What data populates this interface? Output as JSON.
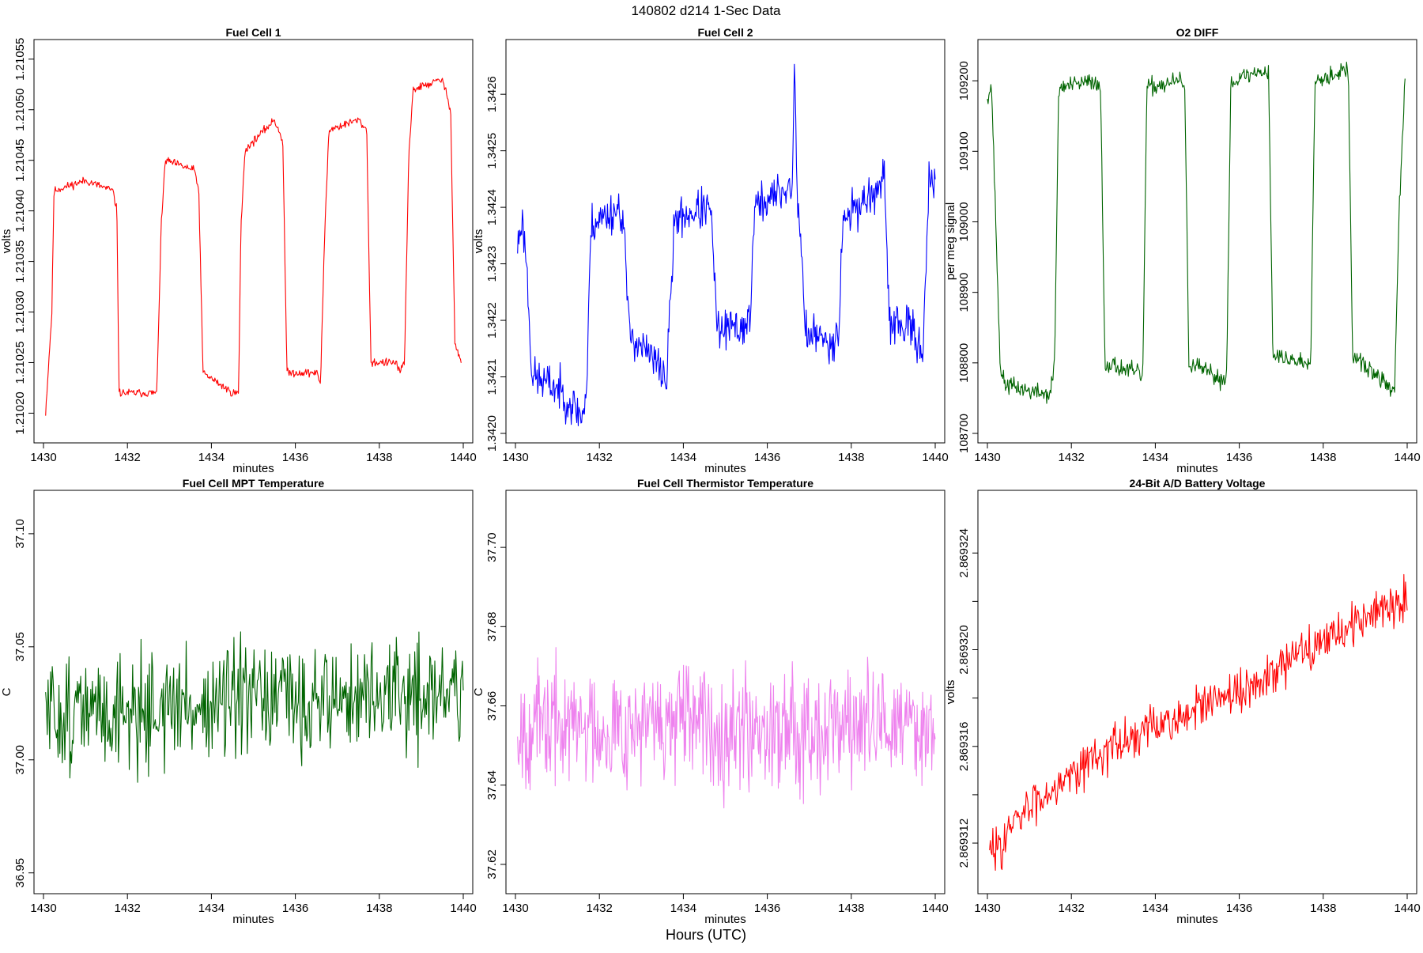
{
  "figure": {
    "title": "140802   d214   1-Sec Data",
    "footer_label": "Hours (UTC)"
  },
  "chart_data": [
    {
      "type": "line",
      "title": "Fuel Cell 1",
      "xlabel": "minutes",
      "ylabel": "volts",
      "color": "#ff0000",
      "xlim": [
        1430,
        1440
      ],
      "ylim": [
        1.21018,
        1.21056
      ],
      "xticks": [
        1430,
        1432,
        1434,
        1436,
        1438,
        1440
      ],
      "xtick_labels": [
        "1430",
        "1432",
        "1434",
        "1436",
        "1438",
        "1440"
      ],
      "yticks": [
        1.2102,
        1.21025,
        1.2103,
        1.21035,
        1.2104,
        1.21045,
        1.2105,
        1.21055
      ],
      "ytick_labels": [
        "1.21020",
        "1.21025",
        "1.21030",
        "1.21035",
        "1.21040",
        "1.21045",
        "1.21050",
        "1.21055"
      ],
      "series": [
        {
          "name": "Fuel Cell 1",
          "x": [
            1430.05,
            1430.2,
            1430.25,
            1431.0,
            1431.65,
            1431.75,
            1431.8,
            1432.5,
            1432.7,
            1432.8,
            1432.9,
            1433.6,
            1433.7,
            1433.8,
            1434.5,
            1434.65,
            1434.7,
            1434.8,
            1435.5,
            1435.7,
            1435.8,
            1436.5,
            1436.6,
            1436.7,
            1436.8,
            1437.5,
            1437.7,
            1437.8,
            1438.4,
            1438.5,
            1438.6,
            1438.7,
            1438.8,
            1439.5,
            1439.7,
            1439.8,
            1439.95
          ],
          "y": [
            1.2102,
            1.2103,
            1.21042,
            1.21043,
            1.21042,
            1.2104,
            1.21022,
            1.21022,
            1.21022,
            1.21038,
            1.21045,
            1.21044,
            1.21042,
            1.21024,
            1.21022,
            1.21022,
            1.21038,
            1.21046,
            1.21049,
            1.21047,
            1.21024,
            1.21024,
            1.21023,
            1.21038,
            1.21048,
            1.21049,
            1.21048,
            1.21025,
            1.21025,
            1.21024,
            1.21025,
            1.21045,
            1.21052,
            1.21053,
            1.2105,
            1.21027,
            1.21025
          ],
          "noise": 3.5e-06,
          "points": 600,
          "seed": 11
        }
      ]
    },
    {
      "type": "line",
      "title": "Fuel Cell 2",
      "xlabel": "minutes",
      "ylabel": "volts",
      "color": "#0000ff",
      "xlim": [
        1430,
        1440
      ],
      "ylim": [
        1.342,
        1.34268
      ],
      "xticks": [
        1430,
        1432,
        1434,
        1436,
        1438,
        1440
      ],
      "xtick_labels": [
        "1430",
        "1432",
        "1434",
        "1436",
        "1438",
        "1440"
      ],
      "yticks": [
        1.342,
        1.3421,
        1.3422,
        1.3423,
        1.3424,
        1.3425,
        1.3426
      ],
      "ytick_labels": [
        "1.3420",
        "1.3421",
        "1.3422",
        "1.3423",
        "1.3424",
        "1.3425",
        "1.3426"
      ],
      "series": [
        {
          "name": "Fuel Cell 2",
          "x": [
            1430.05,
            1430.15,
            1430.25,
            1430.4,
            1431.0,
            1431.6,
            1431.7,
            1431.8,
            1432.5,
            1432.6,
            1432.7,
            1433.5,
            1433.6,
            1433.7,
            1433.8,
            1434.6,
            1434.7,
            1434.8,
            1435.5,
            1435.6,
            1435.7,
            1436.4,
            1436.6,
            1436.65,
            1436.7,
            1436.8,
            1436.9,
            1437.5,
            1437.7,
            1437.8,
            1438.6,
            1438.8,
            1438.9,
            1439.5,
            1439.7,
            1439.85,
            1440.0
          ],
          "y": [
            1.34233,
            1.34238,
            1.34232,
            1.3421,
            1.34208,
            1.34203,
            1.34208,
            1.34237,
            1.3424,
            1.34235,
            1.34218,
            1.34211,
            1.34209,
            1.34225,
            1.34238,
            1.3424,
            1.34235,
            1.34218,
            1.34219,
            1.34222,
            1.3424,
            1.34243,
            1.34244,
            1.34267,
            1.34243,
            1.34235,
            1.34218,
            1.34216,
            1.34218,
            1.34238,
            1.34243,
            1.34244,
            1.3422,
            1.34218,
            1.34214,
            1.34245,
            1.34243
          ],
          "noise": 3.2e-05,
          "points": 600,
          "seed": 23
        }
      ]
    },
    {
      "type": "line",
      "title": "O2 DIFF",
      "xlabel": "minutes",
      "ylabel": "per meg signal",
      "color": "#006400",
      "xlim": [
        1430,
        1440
      ],
      "ylim": [
        108700,
        109245
      ],
      "xticks": [
        1430,
        1432,
        1434,
        1436,
        1438,
        1440
      ],
      "xtick_labels": [
        "1430",
        "1432",
        "1434",
        "1436",
        "1438",
        "1440"
      ],
      "yticks": [
        108700,
        108800,
        108900,
        109000,
        109100,
        109200
      ],
      "ytick_labels": [
        "108700",
        "108800",
        "108900",
        "109000",
        "109100",
        "109200"
      ],
      "series": [
        {
          "name": "O2 DIFF",
          "x": [
            1430.0,
            1430.1,
            1430.2,
            1430.3,
            1430.4,
            1431.0,
            1431.5,
            1431.6,
            1431.7,
            1432.6,
            1432.7,
            1432.8,
            1433.6,
            1433.7,
            1433.8,
            1434.6,
            1434.7,
            1434.8,
            1435.6,
            1435.7,
            1435.8,
            1436.6,
            1436.7,
            1436.8,
            1437.6,
            1437.7,
            1437.8,
            1438.5,
            1438.6,
            1438.7,
            1439.5,
            1439.7,
            1439.8,
            1439.95
          ],
          "y": [
            109180,
            109190,
            109000,
            108800,
            108770,
            108760,
            108755,
            108800,
            109190,
            109200,
            109180,
            108800,
            108785,
            108780,
            109190,
            109200,
            109195,
            108800,
            108775,
            108785,
            109200,
            109215,
            109210,
            108810,
            108800,
            108800,
            109200,
            109215,
            109210,
            108810,
            108770,
            108760,
            109000,
            109200
          ],
          "noise": 11,
          "points": 600,
          "seed": 37
        }
      ]
    },
    {
      "type": "line",
      "title": "Fuel Cell MPT Temperature",
      "xlabel": "minutes",
      "ylabel": "C",
      "color": "#006400",
      "xlim": [
        1430,
        1440
      ],
      "ylim": [
        36.945,
        37.115
      ],
      "xticks": [
        1430,
        1432,
        1434,
        1436,
        1438,
        1440
      ],
      "xtick_labels": [
        "1430",
        "1432",
        "1434",
        "1436",
        "1438",
        "1440"
      ],
      "yticks": [
        36.95,
        37.0,
        37.05,
        37.1
      ],
      "ytick_labels": [
        "36.95",
        "37.00",
        "37.05",
        "37.10"
      ],
      "series": [
        {
          "name": "Fuel Cell MPT Temperature",
          "x": [
            1430.05,
            1440.0
          ],
          "y": [
            37.02,
            37.03
          ],
          "noise": 0.022,
          "points": 500,
          "seed": 51
        }
      ]
    },
    {
      "type": "line",
      "title": "Fuel Cell Thermistor Temperature",
      "xlabel": "minutes",
      "ylabel": "C",
      "color": "#ee82ee",
      "xlim": [
        1430,
        1440
      ],
      "ylim": [
        37.615,
        37.712
      ],
      "xticks": [
        1430,
        1432,
        1434,
        1436,
        1438,
        1440
      ],
      "xtick_labels": [
        "1430",
        "1432",
        "1434",
        "1436",
        "1438",
        "1440"
      ],
      "yticks": [
        37.62,
        37.64,
        37.66,
        37.68,
        37.7
      ],
      "ytick_labels": [
        "37.62",
        "37.64",
        "37.66",
        "37.68",
        "37.70"
      ],
      "series": [
        {
          "name": "Fuel Cell Thermistor Temperature",
          "x": [
            1430.05,
            1440.0
          ],
          "y": [
            37.655,
            37.655
          ],
          "noise": 0.013,
          "points": 600,
          "seed": 67
        }
      ]
    },
    {
      "type": "line",
      "title": "24-Bit A/D Battery Voltage",
      "xlabel": "minutes",
      "ylabel": "volts",
      "color": "#ff0000",
      "xlim": [
        1430,
        1440
      ],
      "ylim": [
        2.8693103,
        2.8693262
      ],
      "xticks": [
        1430,
        1432,
        1434,
        1436,
        1438,
        1440
      ],
      "xtick_labels": [
        "1430",
        "1432",
        "1434",
        "1436",
        "1438",
        "1440"
      ],
      "yticks": [
        2.869312,
        2.869314,
        2.869316,
        2.869318,
        2.86932,
        2.869322,
        2.869324
      ],
      "ytick_labels": [
        "2.869312",
        "",
        "2.869316",
        "",
        "2.869320",
        "",
        "2.869324"
      ],
      "series": [
        {
          "name": "24-Bit A/D Battery Voltage",
          "x": [
            1430.05,
            1431.0,
            1432.0,
            1433.0,
            1434.0,
            1435.0,
            1436.0,
            1437.0,
            1438.0,
            1439.0,
            1440.0
          ],
          "y": [
            2.8693115,
            2.8693135,
            2.869315,
            2.869316,
            2.8693168,
            2.8693175,
            2.8693182,
            2.8693192,
            2.8693205,
            2.8693213,
            2.8693222
          ],
          "noise": 8e-07,
          "points": 500,
          "seed": 83
        }
      ]
    }
  ]
}
